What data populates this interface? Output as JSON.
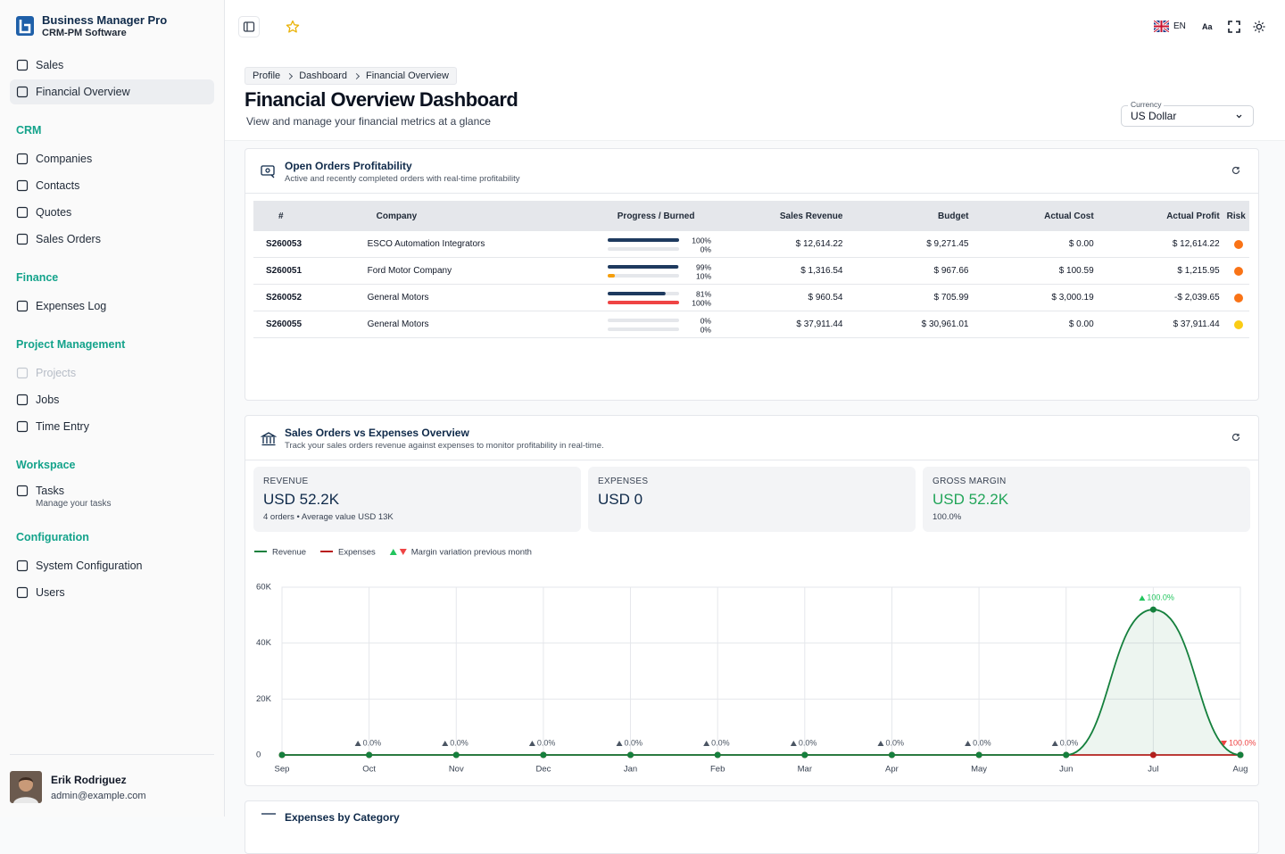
{
  "sidebar": {
    "brand": "Business Manager Pro",
    "tagline": "CRM-PM Software",
    "groups": [
      {
        "items": [
          {
            "label": "Sales"
          },
          {
            "label": "Financial Overview",
            "active": true
          }
        ]
      },
      {
        "title": "CRM",
        "items": [
          {
            "label": "Companies"
          },
          {
            "label": "Contacts"
          },
          {
            "label": "Quotes"
          },
          {
            "label": "Sales Orders"
          }
        ]
      },
      {
        "title": "Finance",
        "items": [
          {
            "label": "Expenses Log"
          }
        ]
      },
      {
        "title": "Project Management",
        "items": [
          {
            "label": "Projects",
            "disabled": true
          },
          {
            "label": "Jobs"
          },
          {
            "label": "Time Entry"
          }
        ]
      },
      {
        "title": "Workspace",
        "items": [
          {
            "label": "Tasks",
            "description": "Manage your tasks"
          }
        ]
      },
      {
        "title": "Configuration",
        "items": [
          {
            "label": "System Configuration"
          },
          {
            "label": "Users"
          }
        ]
      }
    ],
    "user": {
      "name": "Erik Rodriguez",
      "email": "admin@example.com"
    }
  },
  "topbar": {
    "language": "EN",
    "font_button": "Aa"
  },
  "breadcrumb": [
    "Profile",
    "Dashboard",
    "Financial Overview"
  ],
  "header": {
    "title": "Financial Overview Dashboard",
    "subtitle": "View and manage your financial metrics at a glance",
    "currency_label": "Currency",
    "currency": "US Dollar"
  },
  "orders": {
    "title": "Open Orders Profitability",
    "subtitle": "Active and recently completed orders with real-time profitability",
    "columns": [
      "#",
      "Company",
      "Progress / Burned",
      "Sales Revenue",
      "Budget",
      "Actual Cost",
      "Actual Profit",
      "Risk"
    ],
    "rows": [
      {
        "id": "S260053",
        "company": "ESCO Automation Integrators",
        "progress": 100,
        "progress_label": "100%",
        "burned": 0,
        "burned_label": "0%",
        "burned_color": "#f59e0b",
        "revenue": "$ 12,614.22",
        "budget": "$ 9,271.45",
        "cost": "$ 0.00",
        "profit": "$ 12,614.22",
        "risk_color": "#f97316"
      },
      {
        "id": "S260051",
        "company": "Ford Motor Company",
        "progress": 99,
        "progress_label": "99%",
        "burned": 10,
        "burned_label": "10%",
        "burned_color": "#f59e0b",
        "revenue": "$ 1,316.54",
        "budget": "$ 967.66",
        "cost": "$ 100.59",
        "profit": "$ 1,215.95",
        "risk_color": "#f97316"
      },
      {
        "id": "S260052",
        "company": "General Motors",
        "progress": 81,
        "progress_label": "81%",
        "burned": 100,
        "burned_label": "100%",
        "burned_color": "#ef4444",
        "revenue": "$ 960.54",
        "budget": "$ 705.99",
        "cost": "$ 3,000.19",
        "profit": "-$ 2,039.65",
        "risk_color": "#f97316"
      },
      {
        "id": "S260055",
        "company": "General Motors",
        "progress": 0,
        "progress_label": "0%",
        "burned": 0,
        "burned_label": "0%",
        "burned_color": "#f59e0b",
        "revenue": "$ 37,911.44",
        "budget": "$ 30,961.01",
        "cost": "$ 0.00",
        "profit": "$ 37,911.44",
        "risk_color": "#facc15"
      }
    ]
  },
  "sales": {
    "title": "Sales Orders vs Expenses Overview",
    "subtitle": "Track your sales orders revenue against expenses to monitor profitability in real-time.",
    "kpis": [
      {
        "label": "REVENUE",
        "value": "USD 52.2K",
        "note": "4 orders • Average value USD 13K"
      },
      {
        "label": "EXPENSES",
        "value": "USD 0"
      },
      {
        "label": "GROSS MARGIN",
        "value": "USD 52.2K",
        "note": "100.0%",
        "color": "#22a559"
      }
    ],
    "chart_data": {
      "type": "line",
      "categories": [
        "Sep",
        "Oct",
        "Nov",
        "Dec",
        "Jan",
        "Feb",
        "Mar",
        "Apr",
        "May",
        "Jun",
        "Jul",
        "Aug"
      ],
      "series": [
        {
          "name": "Revenue",
          "color": "#15803d",
          "area": true,
          "values": [
            0,
            0,
            0,
            0,
            0,
            0,
            0,
            0,
            0,
            0,
            52000,
            0
          ]
        },
        {
          "name": "Expenses",
          "color": "#b91c1c",
          "values": [
            0,
            0,
            0,
            0,
            0,
            0,
            0,
            0,
            0,
            0,
            0,
            0
          ]
        }
      ],
      "margin": {
        "name": "Margin variation previous month",
        "up_color": "#22c55e",
        "down_color": "#ef4444",
        "values": [
          null,
          0,
          0,
          0,
          0,
          0,
          0,
          0,
          0,
          0,
          100,
          -100
        ],
        "value_labels": [
          null,
          "0.0%",
          "0.0%",
          "0.0%",
          "0.0%",
          "0.0%",
          "0.0%",
          "0.0%",
          "0.0%",
          "0.0%",
          "100.0%",
          "100.0%"
        ]
      },
      "ylim": [
        0,
        60000
      ],
      "yticks": [
        0,
        {
          "value": 20000,
          "label": "20K"
        },
        {
          "value": 40000,
          "label": "40K"
        },
        {
          "value": 60000,
          "label": "60K"
        }
      ],
      "grid": true
    }
  },
  "next_card": {
    "title": "Expenses by Category"
  }
}
